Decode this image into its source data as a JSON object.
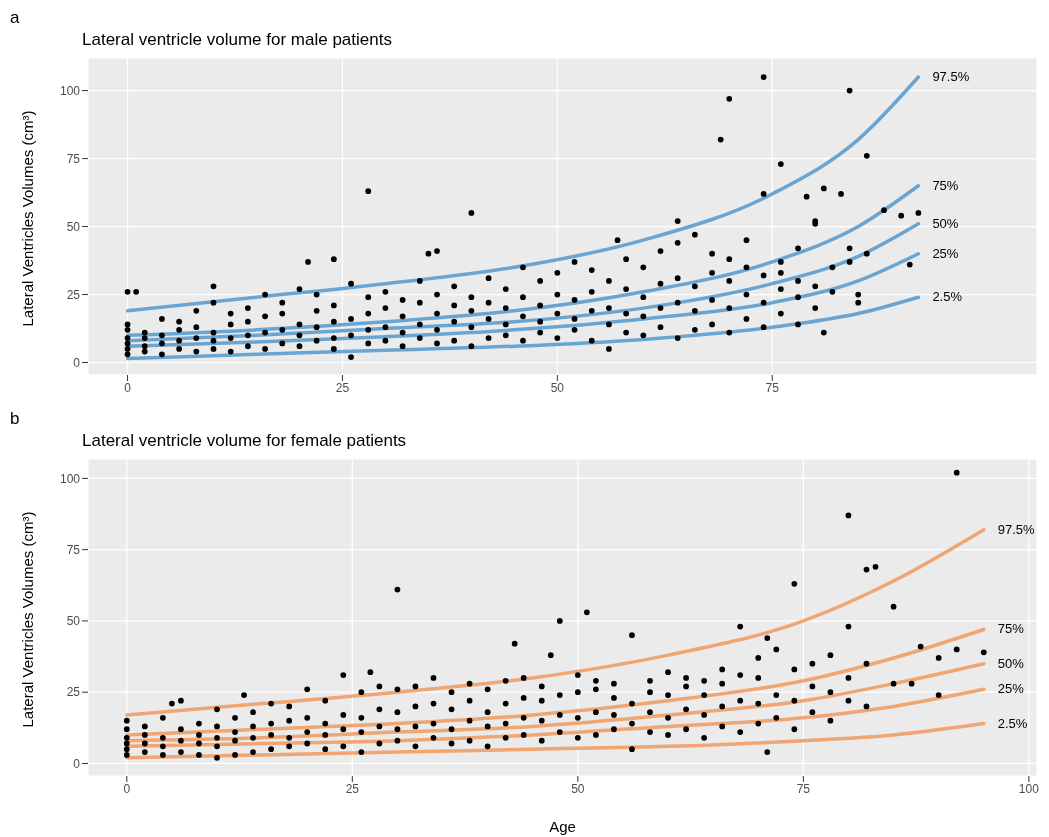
{
  "chart_data": [
    {
      "type": "scatter",
      "title": "Lateral ventricle volume for male patients",
      "ylabel": "Lateral Ventricles Volumes (cm³)",
      "annotations": [
        "a"
      ],
      "xlim": [
        -4.6,
        105.8
      ],
      "ylim": [
        -4.6,
        112
      ],
      "xticks": [
        0,
        25,
        50,
        75
      ],
      "yticks": [
        0,
        25,
        50,
        75,
        100
      ],
      "grid": true,
      "series": [
        {
          "marker": "circle",
          "color": "#000000",
          "x": [
            0,
            0,
            0,
            0,
            0,
            0,
            0,
            1,
            2,
            2,
            2,
            2,
            4,
            4,
            4,
            4,
            6,
            6,
            6,
            6,
            8,
            8,
            8,
            8,
            10,
            10,
            10,
            10,
            10,
            12,
            12,
            12,
            12,
            14,
            14,
            14,
            14,
            16,
            16,
            16,
            16,
            18,
            18,
            18,
            18,
            20,
            20,
            20,
            20,
            21,
            22,
            22,
            22,
            22,
            24,
            24,
            24,
            24,
            24,
            26,
            26,
            26,
            26,
            28,
            28,
            28,
            28,
            28,
            30,
            30,
            30,
            30,
            32,
            32,
            32,
            32,
            34,
            34,
            34,
            34,
            35,
            36,
            36,
            36,
            36,
            36,
            38,
            38,
            38,
            38,
            40,
            40,
            40,
            40,
            40,
            42,
            42,
            42,
            42,
            44,
            44,
            44,
            44,
            46,
            46,
            46,
            46,
            48,
            48,
            48,
            48,
            50,
            50,
            50,
            50,
            52,
            52,
            52,
            52,
            54,
            54,
            54,
            54,
            56,
            56,
            56,
            56,
            57,
            58,
            58,
            58,
            58,
            60,
            60,
            60,
            60,
            62,
            62,
            62,
            62,
            64,
            64,
            64,
            64,
            64,
            66,
            66,
            66,
            66,
            68,
            68,
            68,
            68,
            69,
            70,
            70,
            70,
            70,
            70,
            72,
            72,
            72,
            72,
            74,
            74,
            74,
            74,
            74,
            76,
            76,
            76,
            76,
            76,
            78,
            78,
            78,
            78,
            79,
            80,
            80,
            80,
            80,
            81,
            81,
            82,
            82,
            83,
            84,
            84,
            84,
            85,
            85,
            86,
            86,
            88,
            90,
            91,
            92
          ],
          "values": [
            3,
            5,
            7,
            9,
            12,
            14,
            26,
            26,
            4,
            6,
            9,
            11,
            3,
            7,
            10,
            16,
            5,
            8,
            12,
            15,
            4,
            9,
            13,
            19,
            5,
            8,
            11,
            22,
            28,
            4,
            9,
            14,
            18,
            6,
            10,
            15,
            20,
            5,
            11,
            17,
            25,
            7,
            12,
            18,
            22,
            6,
            10,
            14,
            27,
            37,
            8,
            13,
            19,
            25,
            5,
            9,
            15,
            21,
            38,
            2,
            10,
            16,
            29,
            7,
            12,
            18,
            24,
            63,
            8,
            13,
            20,
            26,
            6,
            11,
            17,
            23,
            9,
            14,
            22,
            30,
            40,
            7,
            12,
            18,
            25,
            41,
            8,
            15,
            21,
            28,
            6,
            13,
            19,
            24,
            55,
            9,
            16,
            22,
            31,
            10,
            14,
            20,
            27,
            8,
            17,
            24,
            35,
            11,
            15,
            21,
            30,
            9,
            18,
            25,
            33,
            12,
            16,
            23,
            37,
            8,
            19,
            26,
            34,
            5,
            14,
            20,
            30,
            45,
            11,
            18,
            27,
            38,
            10,
            17,
            24,
            35,
            13,
            20,
            29,
            41,
            9,
            22,
            31,
            44,
            52,
            12,
            19,
            28,
            47,
            14,
            23,
            33,
            40,
            82,
            11,
            20,
            30,
            38,
            97,
            16,
            25,
            35,
            45,
            13,
            22,
            32,
            62,
            105,
            18,
            27,
            37,
            33,
            73,
            14,
            24,
            42,
            30,
            61,
            20,
            28,
            52,
            51,
            64,
            11,
            26,
            35,
            62,
            42,
            100,
            37,
            25,
            22,
            76,
            40,
            56,
            54,
            36,
            55
          ]
        },
        {
          "type": "line",
          "name": "97.5%",
          "color": "#6aa5d2",
          "x": [
            0,
            15,
            30,
            45,
            60,
            75,
            85,
            92
          ],
          "values": [
            19,
            24,
            29,
            35,
            45,
            62,
            82,
            105
          ]
        },
        {
          "type": "line",
          "name": "75%",
          "color": "#6aa5d2",
          "x": [
            0,
            15,
            30,
            45,
            60,
            75,
            85,
            92
          ],
          "values": [
            10,
            12,
            15,
            19,
            26,
            37,
            50,
            65
          ]
        },
        {
          "type": "line",
          "name": "50%",
          "color": "#6aa5d2",
          "x": [
            0,
            15,
            30,
            45,
            60,
            75,
            85,
            92
          ],
          "values": [
            8,
            10,
            12.5,
            15,
            20,
            29,
            39,
            51
          ]
        },
        {
          "type": "line",
          "name": "25%",
          "color": "#6aa5d2",
          "x": [
            0,
            15,
            30,
            45,
            60,
            75,
            85,
            92
          ],
          "values": [
            6,
            7.5,
            9.5,
            12,
            16,
            22,
            30,
            40
          ]
        },
        {
          "type": "line",
          "name": "2.5%",
          "color": "#6aa5d2",
          "x": [
            0,
            15,
            30,
            45,
            60,
            75,
            85,
            92
          ],
          "values": [
            1.5,
            3,
            4.5,
            6,
            8.5,
            13,
            18,
            24
          ]
        }
      ]
    },
    {
      "type": "scatter",
      "title": "Lateral ventricle volume for female patients",
      "xlabel": "Age",
      "ylabel": "Lateral Ventricles Volumes (cm³)",
      "annotations": [
        "b"
      ],
      "xlim": [
        -4.3,
        100.9
      ],
      "ylim": [
        -4.4,
        106.8
      ],
      "xticks": [
        0,
        25,
        50,
        75,
        100
      ],
      "yticks": [
        0,
        25,
        50,
        75,
        100
      ],
      "grid": true,
      "series": [
        {
          "marker": "circle",
          "color": "#000000",
          "x": [
            0,
            0,
            0,
            0,
            0,
            0,
            2,
            2,
            2,
            2,
            4,
            4,
            4,
            4,
            5,
            6,
            6,
            6,
            6,
            8,
            8,
            8,
            8,
            10,
            10,
            10,
            10,
            10,
            12,
            12,
            12,
            12,
            13,
            14,
            14,
            14,
            14,
            16,
            16,
            16,
            16,
            18,
            18,
            18,
            18,
            20,
            20,
            20,
            20,
            22,
            22,
            22,
            22,
            24,
            24,
            24,
            24,
            26,
            26,
            26,
            26,
            27,
            28,
            28,
            28,
            28,
            30,
            30,
            30,
            30,
            30,
            32,
            32,
            32,
            32,
            34,
            34,
            34,
            34,
            36,
            36,
            36,
            36,
            38,
            38,
            38,
            38,
            40,
            40,
            40,
            40,
            42,
            42,
            42,
            42,
            43,
            44,
            44,
            44,
            44,
            46,
            46,
            46,
            46,
            47,
            48,
            48,
            48,
            48,
            50,
            50,
            50,
            50,
            51,
            52,
            52,
            52,
            52,
            54,
            54,
            54,
            54,
            56,
            56,
            56,
            56,
            58,
            58,
            58,
            58,
            60,
            60,
            60,
            60,
            62,
            62,
            62,
            62,
            64,
            64,
            64,
            64,
            66,
            66,
            66,
            66,
            68,
            68,
            68,
            68,
            70,
            70,
            70,
            70,
            71,
            71,
            72,
            72,
            72,
            74,
            74,
            74,
            74,
            76,
            76,
            76,
            78,
            78,
            78,
            80,
            80,
            80,
            80,
            82,
            82,
            82,
            83,
            85,
            85,
            87,
            88,
            90,
            90,
            92,
            92,
            95
          ],
          "values": [
            3,
            5,
            7,
            9,
            12,
            15,
            4,
            7,
            10,
            13,
            3,
            6,
            9,
            16,
            21,
            4,
            8,
            12,
            22,
            3,
            7,
            10,
            14,
            2,
            6,
            9,
            13,
            19,
            3,
            8,
            11,
            16,
            24,
            4,
            9,
            13,
            18,
            5,
            10,
            14,
            21,
            6,
            9,
            15,
            20,
            7,
            11,
            16,
            26,
            5,
            10,
            14,
            22,
            6,
            12,
            17,
            31,
            4,
            11,
            16,
            25,
            32,
            7,
            13,
            19,
            27,
            8,
            12,
            18,
            26,
            61,
            6,
            13,
            20,
            27,
            9,
            14,
            21,
            30,
            7,
            12,
            19,
            25,
            8,
            15,
            22,
            28,
            6,
            13,
            18,
            26,
            9,
            14,
            21,
            29,
            42,
            10,
            16,
            23,
            30,
            8,
            15,
            22,
            27,
            38,
            11,
            17,
            24,
            50,
            9,
            16,
            25,
            31,
            53,
            10,
            18,
            26,
            29,
            12,
            17,
            23,
            28,
            5,
            14,
            21,
            45,
            11,
            18,
            25,
            29,
            10,
            16,
            24,
            32,
            12,
            19,
            27,
            30,
            9,
            17,
            24,
            29,
            13,
            20,
            28,
            33,
            11,
            22,
            31,
            48,
            14,
            21,
            30,
            37,
            44,
            4,
            16,
            24,
            40,
            12,
            22,
            33,
            63,
            18,
            27,
            35,
            15,
            25,
            38,
            22,
            30,
            48,
            87,
            20,
            35,
            68,
            69,
            28,
            55,
            28,
            41,
            24,
            37,
            102,
            40,
            39
          ]
        },
        {
          "type": "line",
          "name": "97.5%",
          "color": "#f0a673",
          "x": [
            0,
            15,
            30,
            45,
            60,
            75,
            85,
            95
          ],
          "values": [
            17,
            21,
            25,
            30,
            38,
            50,
            64,
            82
          ]
        },
        {
          "type": "line",
          "name": "75%",
          "color": "#f0a673",
          "x": [
            0,
            15,
            30,
            45,
            60,
            75,
            85,
            95
          ],
          "values": [
            10,
            12,
            14,
            17,
            22,
            29,
            37,
            47
          ]
        },
        {
          "type": "line",
          "name": "50%",
          "color": "#f0a673",
          "x": [
            0,
            15,
            30,
            45,
            60,
            75,
            85,
            95
          ],
          "values": [
            8,
            9,
            11,
            13,
            17,
            22,
            28,
            35
          ]
        },
        {
          "type": "line",
          "name": "25%",
          "color": "#f0a673",
          "x": [
            0,
            15,
            30,
            45,
            60,
            75,
            85,
            95
          ],
          "values": [
            6,
            7,
            8,
            10,
            13,
            16,
            20,
            26
          ]
        },
        {
          "type": "line",
          "name": "2.5%",
          "color": "#f0a673",
          "x": [
            0,
            15,
            30,
            45,
            60,
            75,
            85,
            95
          ],
          "values": [
            2,
            3,
            4,
            5,
            6,
            8,
            10,
            14
          ]
        }
      ]
    }
  ]
}
